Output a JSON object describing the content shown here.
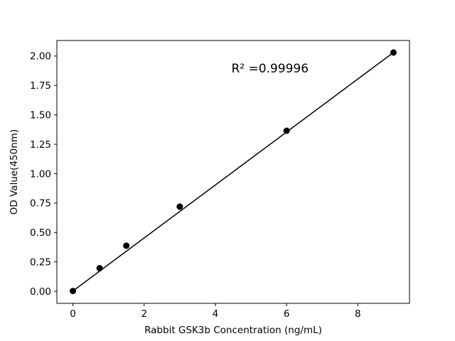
{
  "chart_data": {
    "type": "scatter",
    "title": "",
    "xlabel": "Rabbit GSK3b Concentration (ng/mL)",
    "ylabel": "OD Value(450nm)",
    "annotation": "R² =0.99996",
    "annotation_pos": [
      4.45,
      1.86
    ],
    "x": [
      0,
      0.75,
      1.5,
      3,
      6,
      9
    ],
    "y": [
      0.003,
      0.197,
      0.388,
      0.72,
      1.365,
      2.03
    ],
    "fit_line": {
      "x": [
        0,
        9
      ],
      "y": [
        0.003,
        2.03
      ]
    },
    "xticks": [
      0,
      2,
      4,
      6,
      8
    ],
    "xticklabels": [
      "0",
      "2",
      "4",
      "6",
      "8"
    ],
    "yticks": [
      0,
      0.25,
      0.5,
      0.75,
      1,
      1.25,
      1.5,
      1.75,
      2
    ],
    "yticklabels": [
      "0.00",
      "0.25",
      "0.50",
      "0.75",
      "1.00",
      "1.25",
      "1.50",
      "1.75",
      "2.00"
    ],
    "xlim": [
      -0.45,
      9.45
    ],
    "ylim": [
      -0.102,
      2.132
    ],
    "grid": false,
    "legend": "none",
    "marker_color": "#000000",
    "line_color": "#000000",
    "axis_color": "#000000",
    "background": "#ffffff"
  }
}
